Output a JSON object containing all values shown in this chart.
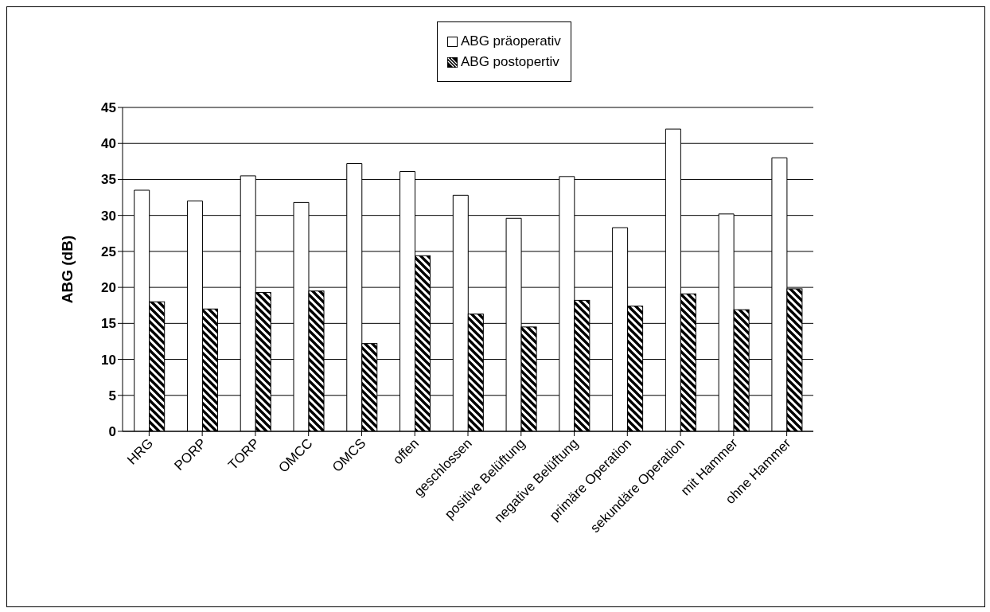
{
  "chart_data": {
    "type": "bar",
    "ylabel": "ABG (dB)",
    "categories": [
      "HRG",
      "PORP",
      "TORP",
      "OMCC",
      "OMCS",
      "offen",
      "geschlossen",
      "positive Belüftung",
      "negative Belüftung",
      "primäre Operation",
      "sekundäre Operation",
      "mit Hammer",
      "ohne Hammer"
    ],
    "series": [
      {
        "name": "ABG präoperativ",
        "color": "#ffffff",
        "values": [
          33.5,
          32,
          35.5,
          31.8,
          37.2,
          36.1,
          32.8,
          29.6,
          35.4,
          28.3,
          42,
          30.2,
          38
        ]
      },
      {
        "name": "ABG postopertiv",
        "color": "#000000",
        "values": [
          18,
          17,
          19.3,
          19.5,
          12.2,
          24.4,
          16.3,
          14.5,
          18.2,
          17.4,
          19.1,
          16.9,
          19.8
        ]
      }
    ],
    "ylim": [
      0,
      45
    ],
    "yticks": [
      0,
      5,
      10,
      15,
      20,
      25,
      30,
      35,
      40,
      45
    ],
    "grid": "y",
    "legend": "top"
  }
}
